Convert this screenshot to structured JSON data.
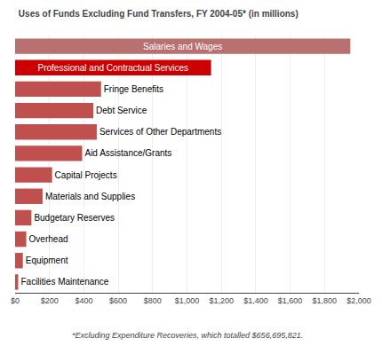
{
  "chart_data": {
    "type": "bar",
    "orientation": "horizontal",
    "title": "Uses of Funds Excluding Fund Transfers, FY 2004-05* (in millions)",
    "annotations": [
      "*Excluding Expenditure Recoveries, which totalled $656,695,821."
    ],
    "categories": [
      "Facilities Maintenance",
      "Equipment",
      "Overhead",
      "Budgetary Reserves",
      "Materials and Supplies",
      "Capital Projects",
      "Aid Assistance/Grants",
      "Services of Other Departments",
      "Debt Service",
      "Fringe Benefits",
      "Professional and Contractual Services",
      "Salaries and Wages"
    ],
    "values": [
      18,
      45,
      65,
      95,
      160,
      215,
      390,
      475,
      455,
      500,
      1140,
      1950
    ],
    "colors": [
      "#c0504d",
      "#c0504d",
      "#c0504d",
      "#c0504d",
      "#c0504d",
      "#c0504d",
      "#c0504d",
      "#c0504d",
      "#c0504d",
      "#c0504d",
      "#cc0000",
      "#b87070"
    ],
    "xlim": [
      0,
      2000
    ],
    "xticks": [
      {
        "value": 0,
        "label": "$0"
      },
      {
        "value": 200,
        "label": "$200"
      },
      {
        "value": 400,
        "label": "$400"
      },
      {
        "value": 600,
        "label": "$600"
      },
      {
        "value": 800,
        "label": "$800"
      },
      {
        "value": 1000,
        "label": "$1,000"
      },
      {
        "value": 1200,
        "label": "$1,200"
      },
      {
        "value": 1400,
        "label": "$1,400"
      },
      {
        "value": 1600,
        "label": "$1,600"
      },
      {
        "value": 1800,
        "label": "$1,800"
      },
      {
        "value": 2000,
        "label": "$2,000"
      }
    ],
    "grid": true,
    "tick_labels": "x"
  }
}
